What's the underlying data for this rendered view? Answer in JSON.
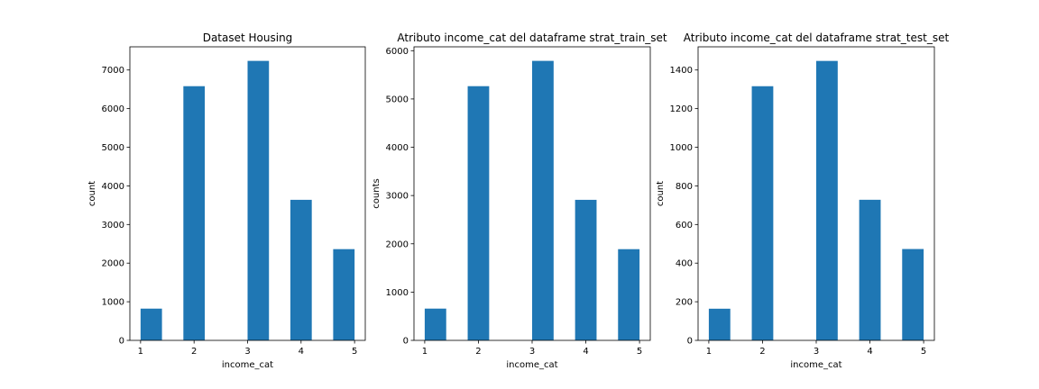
{
  "chart_data": [
    {
      "type": "bar",
      "title": "Dataset Housing",
      "xlabel": "income_cat",
      "ylabel": "count",
      "x_ticks": [
        "1",
        "2",
        "3",
        "4",
        "5"
      ],
      "y_ticks": [
        "0",
        "1000",
        "2000",
        "3000",
        "4000",
        "5000",
        "6000",
        "7000"
      ],
      "xlim": [
        0.8,
        5.2
      ],
      "ylim": [
        0,
        7600
      ],
      "bins": [
        {
          "x0": 1.0,
          "x1": 1.4,
          "value": 822
        },
        {
          "x0": 1.8,
          "x1": 2.2,
          "value": 6581
        },
        {
          "x0": 3.0,
          "x1": 3.4,
          "value": 7236
        },
        {
          "x0": 3.8,
          "x1": 4.2,
          "value": 3639
        },
        {
          "x0": 4.6,
          "x1": 5.0,
          "value": 2362
        }
      ],
      "grid": false,
      "bar_color": "#1f77b4"
    },
    {
      "type": "bar",
      "title": "Atributo income_cat del dataframe strat_train_set",
      "xlabel": "income_cat",
      "ylabel": "counts",
      "x_ticks": [
        "1",
        "2",
        "3",
        "4",
        "5"
      ],
      "y_ticks": [
        "0",
        "1000",
        "2000",
        "3000",
        "4000",
        "5000",
        "6000"
      ],
      "xlim": [
        0.8,
        5.2
      ],
      "ylim": [
        0,
        6080
      ],
      "bins": [
        {
          "x0": 1.0,
          "x1": 1.4,
          "value": 658
        },
        {
          "x0": 1.8,
          "x1": 2.2,
          "value": 5265
        },
        {
          "x0": 3.0,
          "x1": 3.4,
          "value": 5789
        },
        {
          "x0": 3.8,
          "x1": 4.2,
          "value": 2911
        },
        {
          "x0": 4.6,
          "x1": 5.0,
          "value": 1889
        }
      ],
      "grid": false,
      "bar_color": "#1f77b4"
    },
    {
      "type": "bar",
      "title": "Atributo income_cat del dataframe strat_test_set",
      "xlabel": "income_cat",
      "ylabel": "count",
      "x_ticks": [
        "1",
        "2",
        "3",
        "4",
        "5"
      ],
      "y_ticks": [
        "0",
        "200",
        "400",
        "600",
        "800",
        "1000",
        "1200",
        "1400"
      ],
      "xlim": [
        0.8,
        5.2
      ],
      "ylim": [
        0,
        1520
      ],
      "bins": [
        {
          "x0": 1.0,
          "x1": 1.4,
          "value": 164
        },
        {
          "x0": 1.8,
          "x1": 2.2,
          "value": 1316
        },
        {
          "x0": 3.0,
          "x1": 3.4,
          "value": 1447
        },
        {
          "x0": 3.8,
          "x1": 4.2,
          "value": 728
        },
        {
          "x0": 4.6,
          "x1": 5.0,
          "value": 473
        }
      ],
      "grid": false,
      "bar_color": "#1f77b4"
    }
  ]
}
